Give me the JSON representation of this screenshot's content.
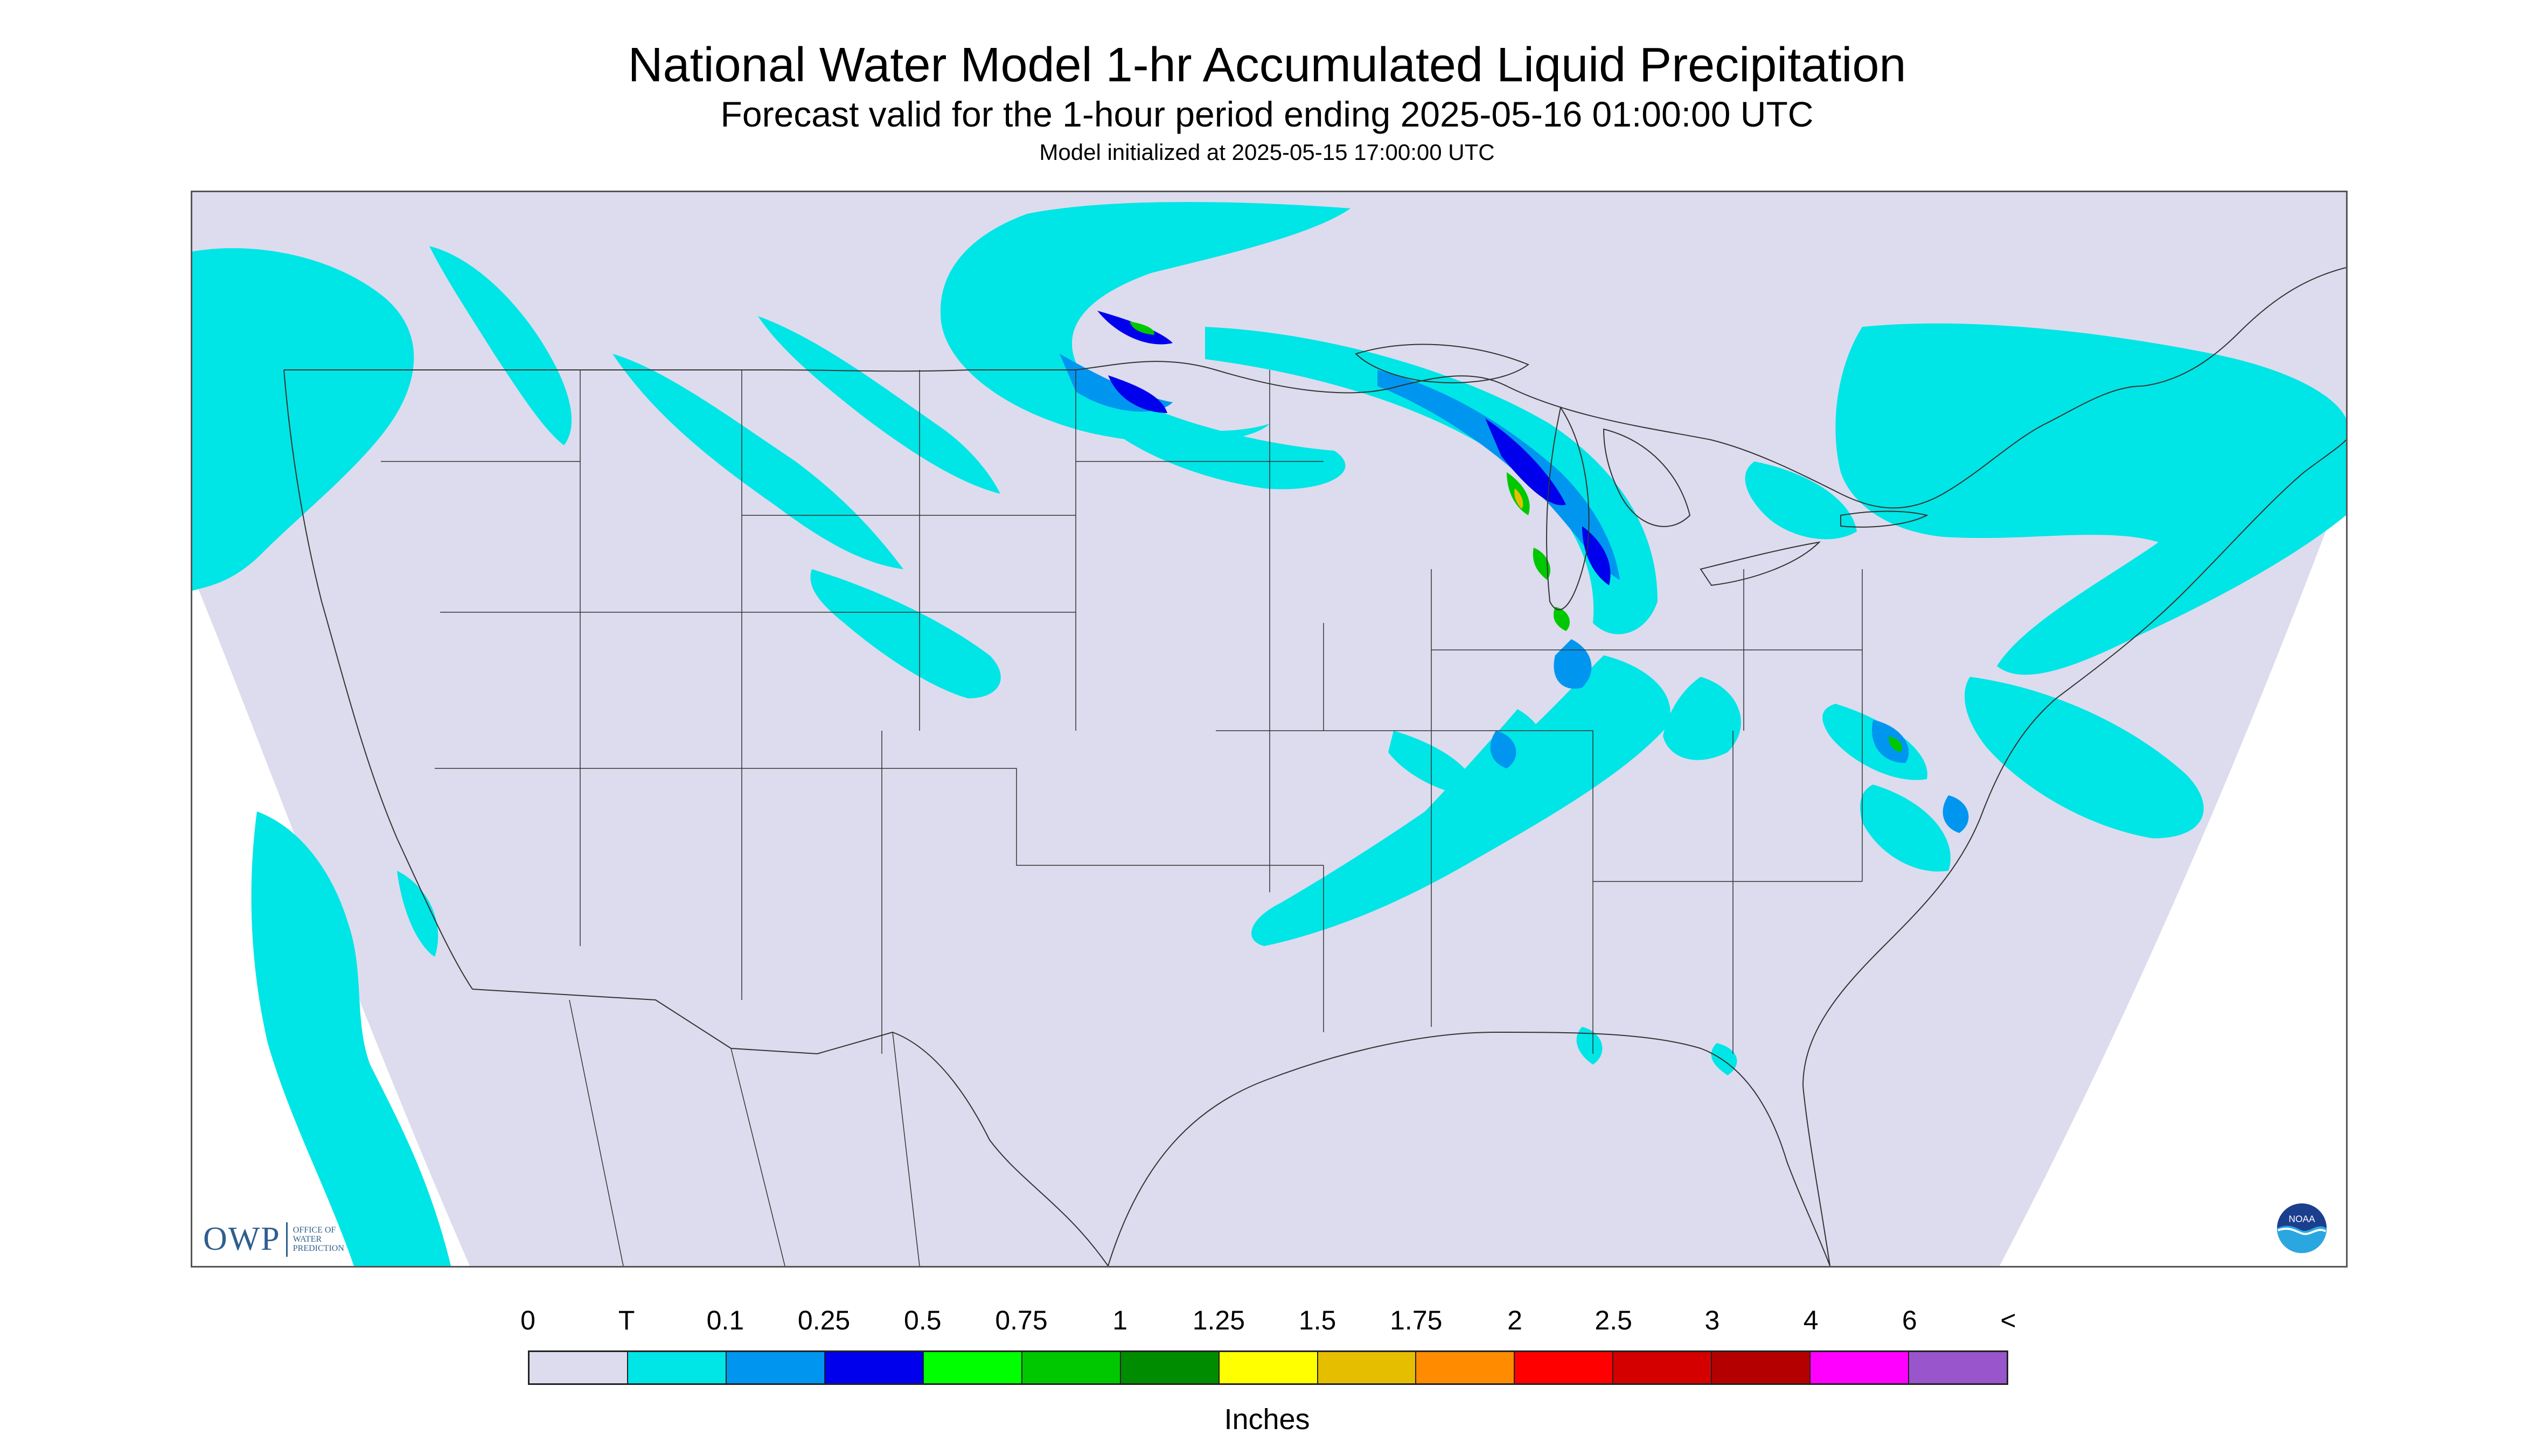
{
  "header": {
    "title": "National Water Model 1-hr Accumulated Liquid Precipitation",
    "subtitle": "Forecast valid for the 1-hour period ending 2025-05-16 01:00:00 UTC",
    "init_text": "Model initialized at 2025-05-15 17:00:00 UTC"
  },
  "map": {
    "background_color": "#ffffff",
    "domain_color": "#dcdcee",
    "border_color": "#333333"
  },
  "logos": {
    "owp": {
      "letters": "OWP",
      "line1": "OFFICE OF",
      "line2": "WATER",
      "line3": "PREDICTION",
      "color": "#2f5f8f"
    },
    "noaa": {
      "icon": "noaa-logo-icon",
      "text": "NOAA"
    }
  },
  "legend": {
    "tick_labels": [
      "0",
      "T",
      "0.1",
      "0.25",
      "0.5",
      "0.75",
      "1",
      "1.25",
      "1.5",
      "1.75",
      "2",
      "2.5",
      "3",
      "4",
      "6",
      "<"
    ],
    "colors": [
      "#dcdcee",
      "#00e5e5",
      "#0096f0",
      "#0000ec",
      "#00ff00",
      "#00c800",
      "#008c00",
      "#ffff00",
      "#e6be00",
      "#ff8c00",
      "#ff0000",
      "#d40000",
      "#b40000",
      "#ff00ff",
      "#9955cc"
    ],
    "units": "Inches"
  }
}
